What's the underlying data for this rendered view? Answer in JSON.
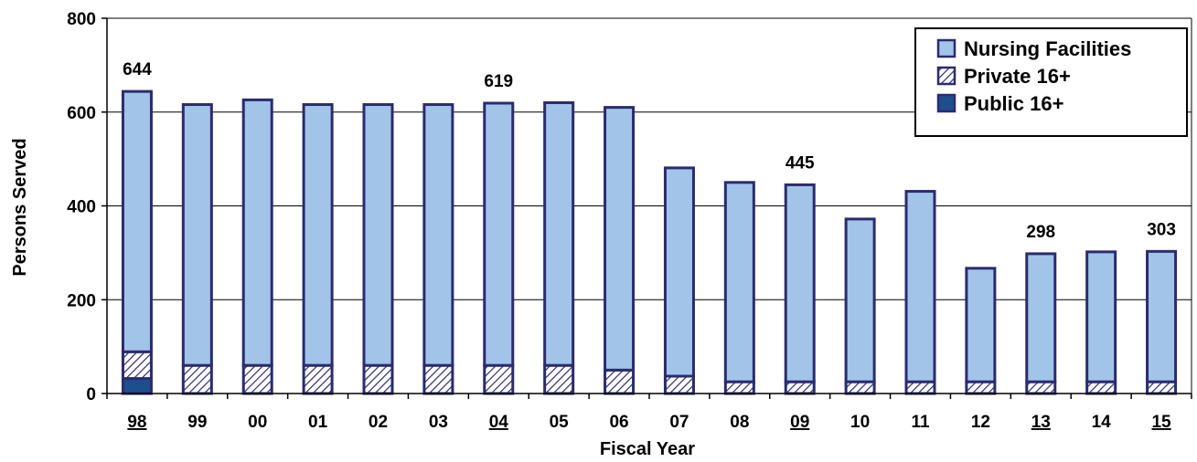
{
  "chart_data": {
    "type": "bar",
    "stacked": true,
    "title": "",
    "xlabel": "Fiscal Year",
    "ylabel": "Persons Served",
    "ylim": [
      0,
      800
    ],
    "yticks": [
      0,
      200,
      400,
      600,
      800
    ],
    "grid": true,
    "legend_position": "top-right",
    "categories": [
      "98",
      "99",
      "00",
      "01",
      "02",
      "03",
      "04",
      "05",
      "06",
      "07",
      "08",
      "09",
      "10",
      "11",
      "12",
      "13",
      "14",
      "15"
    ],
    "underlined_categories": [
      "98",
      "04",
      "09",
      "13",
      "15"
    ],
    "series": [
      {
        "name": "Public 16+",
        "color": "#1f4e8c",
        "values": [
          32,
          0,
          0,
          0,
          0,
          0,
          0,
          0,
          0,
          0,
          0,
          0,
          0,
          0,
          0,
          0,
          0,
          0
        ]
      },
      {
        "name": "Private 16+",
        "color": "#ffffff",
        "pattern": "hatch",
        "values": [
          57,
          60,
          60,
          60,
          60,
          60,
          60,
          60,
          50,
          37,
          25,
          25,
          25,
          25,
          25,
          25,
          25,
          25
        ]
      },
      {
        "name": "Nursing Facilities",
        "color": "#a3c4e9",
        "values": [
          555,
          556,
          566,
          556,
          556,
          556,
          559,
          560,
          560,
          444,
          425,
          420,
          347,
          406,
          242,
          273,
          277,
          278
        ]
      }
    ],
    "legend_order": [
      "Nursing Facilities",
      "Private 16+",
      "Public 16+"
    ],
    "totals": [
      644,
      616,
      626,
      616,
      616,
      616,
      619,
      620,
      610,
      481,
      450,
      445,
      372,
      431,
      267,
      298,
      302,
      303
    ],
    "total_labels": [
      {
        "category": "98",
        "label": "644"
      },
      {
        "category": "04",
        "label": "619"
      },
      {
        "category": "09",
        "label": "445"
      },
      {
        "category": "13",
        "label": "298"
      },
      {
        "category": "15",
        "label": "303"
      }
    ],
    "colors": {
      "outline": "#2b2b6e",
      "grid": "#000000",
      "hatch": "#2b2b6e"
    }
  }
}
